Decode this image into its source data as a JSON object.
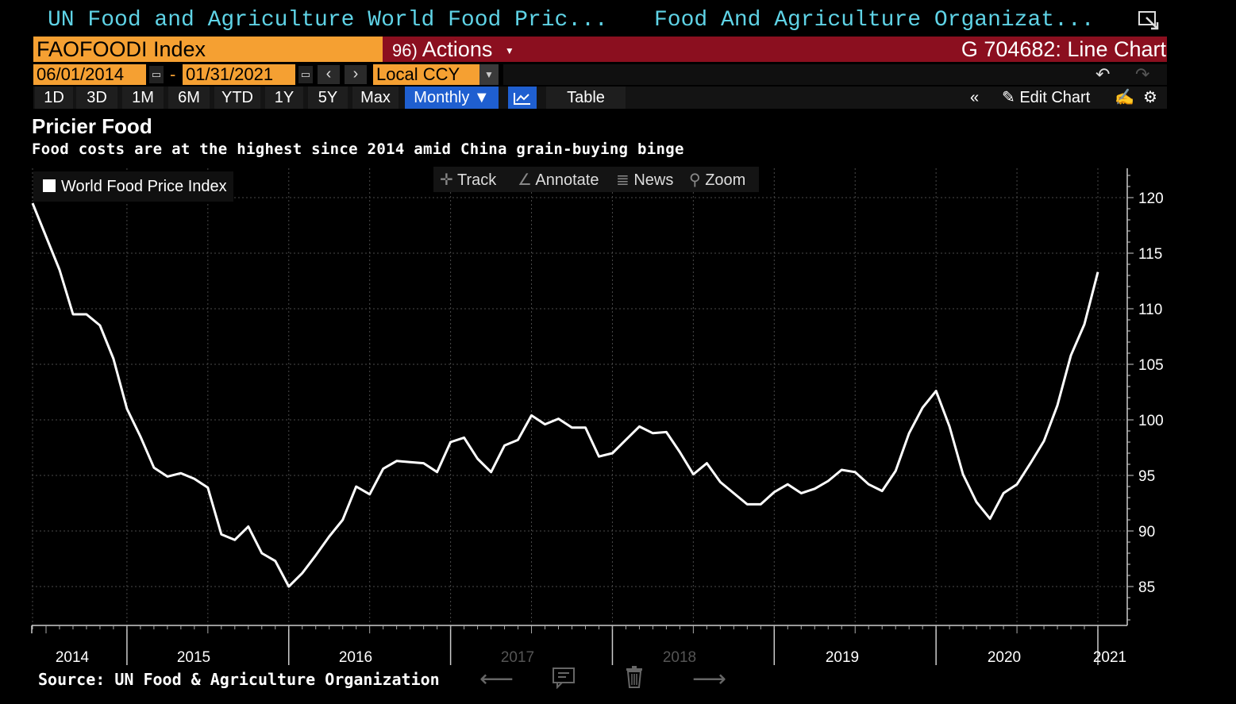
{
  "header": {
    "left_title": "UN Food and Agriculture World Food Pric...",
    "right_title": "Food And Agriculture Organizat..."
  },
  "ticker": {
    "security": "FAOFOODI Index",
    "actions_code": "96)",
    "actions_label": "Actions",
    "chart_id": "G 704682: Line Chart"
  },
  "dates": {
    "start": "06/01/2014",
    "dash": "-",
    "end": "01/31/2021",
    "currency": "Local CCY"
  },
  "range_buttons": [
    "1D",
    "3D",
    "1M",
    "6M",
    "YTD",
    "1Y",
    "5Y",
    "Max"
  ],
  "periodicity": "Monthly",
  "table_label": "Table",
  "edit_chart_label": "Edit Chart",
  "toolbar": {
    "track": "Track",
    "annotate": "Annotate",
    "news": "News",
    "zoom": "Zoom"
  },
  "source": "Source: UN Food & Agriculture Organization",
  "colors": {
    "header_text": "#5fd3e6",
    "ticker_bg": "#f5a032",
    "title_bar": "#8b0f1f",
    "accent_blue": "#1f5fd0",
    "line": "#ffffff"
  },
  "chart_data": {
    "type": "line",
    "title": "Pricier Food",
    "subtitle": "Food costs are at the highest since 2014 amid China grain-buying binge",
    "xlabel": "",
    "ylabel": "",
    "ylim": [
      81,
      123
    ],
    "y_ticks": [
      85,
      90,
      95,
      100,
      105,
      110,
      115,
      120
    ],
    "y_axis_side": "right",
    "grid": true,
    "legend_position": "top-left",
    "x_tick_labels": [
      "2014",
      "2015",
      "2016",
      "2017",
      "2018",
      "2019",
      "2020",
      "2021"
    ],
    "x_range": [
      "2014-06",
      "2021-01"
    ],
    "series": [
      {
        "name": "World Food Price Index",
        "color": "#ffffff",
        "x": [
          "2014-06",
          "2014-07",
          "2014-08",
          "2014-09",
          "2014-10",
          "2014-11",
          "2014-12",
          "2015-01",
          "2015-02",
          "2015-03",
          "2015-04",
          "2015-05",
          "2015-06",
          "2015-07",
          "2015-08",
          "2015-09",
          "2015-10",
          "2015-11",
          "2015-12",
          "2016-01",
          "2016-02",
          "2016-03",
          "2016-04",
          "2016-05",
          "2016-06",
          "2016-07",
          "2016-08",
          "2016-09",
          "2016-10",
          "2016-11",
          "2016-12",
          "2017-01",
          "2017-02",
          "2017-03",
          "2017-04",
          "2017-05",
          "2017-06",
          "2017-07",
          "2017-08",
          "2017-09",
          "2017-10",
          "2017-11",
          "2017-12",
          "2018-01",
          "2018-02",
          "2018-03",
          "2018-04",
          "2018-05",
          "2018-06",
          "2018-07",
          "2018-08",
          "2018-09",
          "2018-10",
          "2018-11",
          "2018-12",
          "2019-01",
          "2019-02",
          "2019-03",
          "2019-04",
          "2019-05",
          "2019-06",
          "2019-07",
          "2019-08",
          "2019-09",
          "2019-10",
          "2019-11",
          "2019-12",
          "2020-01",
          "2020-02",
          "2020-03",
          "2020-04",
          "2020-05",
          "2020-06",
          "2020-07",
          "2020-08",
          "2020-09",
          "2020-10",
          "2020-11",
          "2020-12",
          "2021-01"
        ],
        "values": [
          119.5,
          116.5,
          113.5,
          109.5,
          109.5,
          108.5,
          105.5,
          101.0,
          98.5,
          95.7,
          94.9,
          95.2,
          94.7,
          93.9,
          89.7,
          89.2,
          90.4,
          88.0,
          87.3,
          85.0,
          86.2,
          87.8,
          89.5,
          91.0,
          94.0,
          93.3,
          95.6,
          96.3,
          96.2,
          96.1,
          95.3,
          98.0,
          98.4,
          96.5,
          95.3,
          97.7,
          98.2,
          100.4,
          99.6,
          100.1,
          99.3,
          99.3,
          96.7,
          97.0,
          98.2,
          99.4,
          98.8,
          98.9,
          97.1,
          95.1,
          96.1,
          94.4,
          93.4,
          92.4,
          92.4,
          93.5,
          94.2,
          93.4,
          93.8,
          94.5,
          95.5,
          95.3,
          94.2,
          93.6,
          95.4,
          98.8,
          101.1,
          102.6,
          99.4,
          95.1,
          92.6,
          91.1,
          93.4,
          94.2,
          96.1,
          98.1,
          101.3,
          105.8,
          108.6,
          113.3
        ]
      }
    ]
  }
}
